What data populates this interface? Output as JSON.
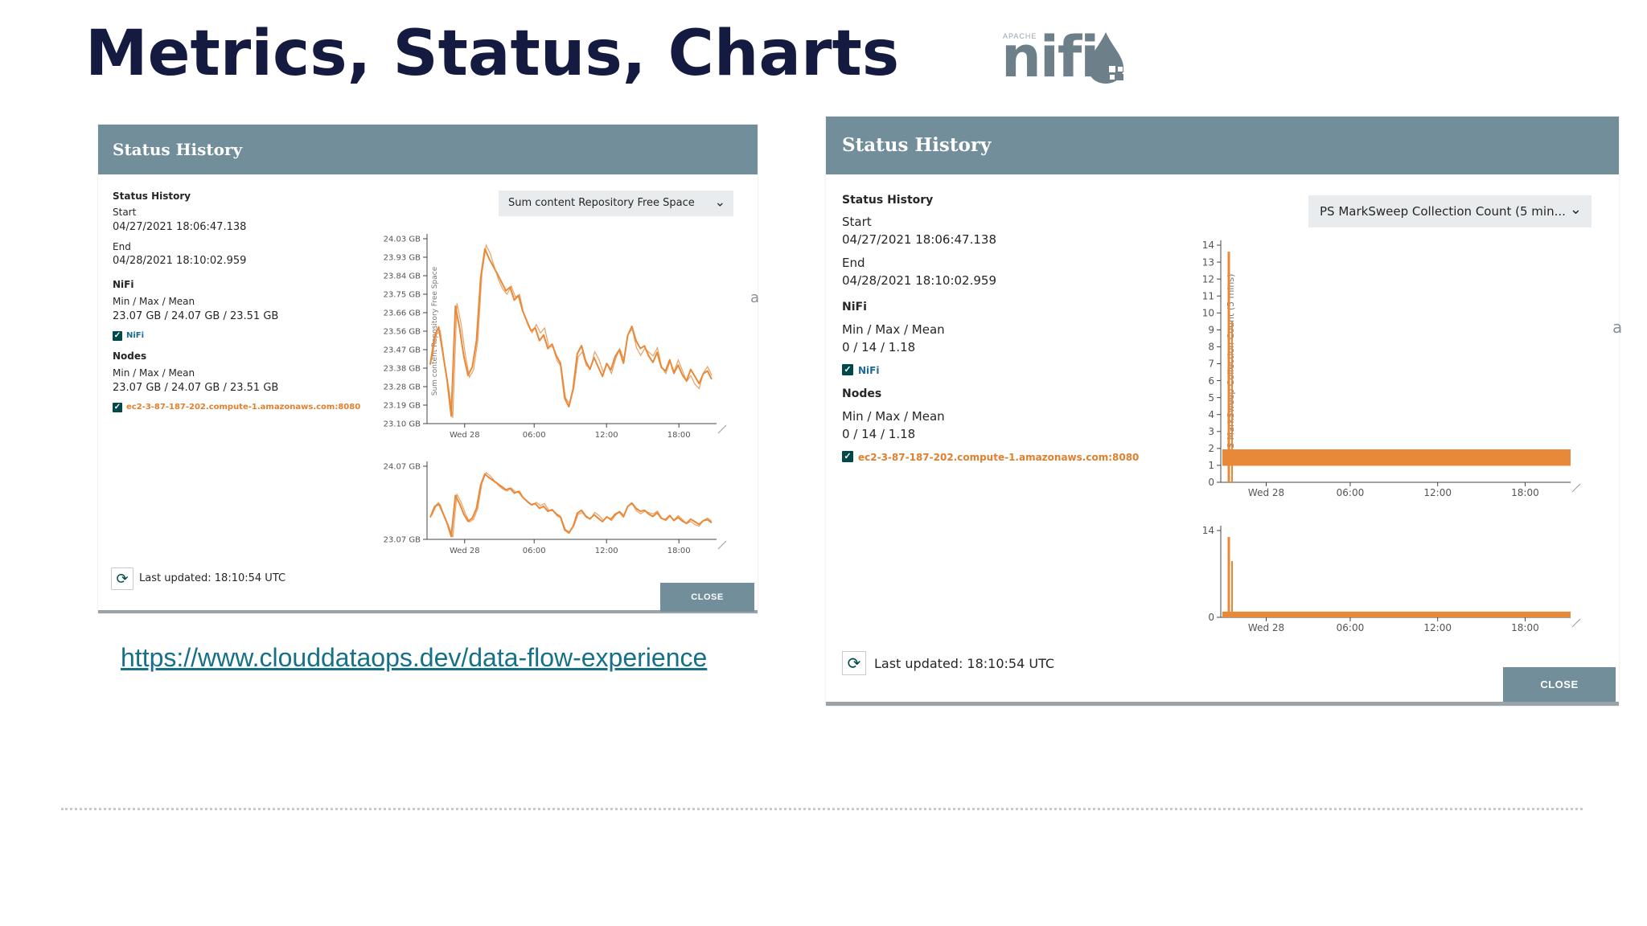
{
  "slide": {
    "title": "Metrics, Status, Charts",
    "logo_small": "APACHE",
    "logo_word": "nifi",
    "link": "https://www.clouddataops.dev/data-flow-experience"
  },
  "dialog_left": {
    "header": "Status History",
    "section": "Status History",
    "start_label": "Start",
    "start_value": "04/27/2021 18:06:47.138",
    "end_label": "End",
    "end_value": "04/28/2021 18:10:02.959",
    "nifi_label": "NiFi",
    "nifi_stats_label": "Min / Max / Mean",
    "nifi_stats_value": "23.07 GB / 24.07 GB / 23.51 GB",
    "nifi_check_label": "NiFi",
    "nodes_label": "Nodes",
    "nodes_stats_label": "Min / Max / Mean",
    "nodes_stats_value": "23.07 GB / 24.07 GB / 23.51 GB",
    "node_check_label": "ec2-3-87-187-202.compute-1.amazonaws.com:8080",
    "select_value": "Sum content Repository Free Space",
    "last_updated": "Last updated: 18:10:54 UTC",
    "close_label": "CLOSE",
    "side_frag": "a"
  },
  "dialog_right": {
    "header": "Status History",
    "section": "Status History",
    "start_label": "Start",
    "start_value": "04/27/2021 18:06:47.138",
    "end_label": "End",
    "end_value": "04/28/2021 18:10:02.959",
    "nifi_label": "NiFi",
    "nifi_stats_label": "Min / Max / Mean",
    "nifi_stats_value": "0 / 14 / 1.18",
    "nifi_check_label": "NiFi",
    "nodes_label": "Nodes",
    "nodes_stats_label": "Min / Max / Mean",
    "nodes_stats_value": "0 / 14 / 1.18",
    "node_check_label": "ec2-3-87-187-202.compute-1.amazonaws.com:8080",
    "select_value": "PS MarkSweep Collection Count (5 min...",
    "last_updated": "Last updated: 18:10:54 UTC",
    "close_label": "CLOSE",
    "side_frag": "a"
  },
  "colors": {
    "header": "#728e9b",
    "line": "#e8893a",
    "title": "#141a40",
    "link": "#17708a",
    "checkbox": "#004849"
  },
  "chart_data": [
    {
      "type": "line",
      "name": "left-main",
      "ylabel": "Sum content Repository Free Space",
      "yticks": [
        "24.03 GB",
        "23.93 GB",
        "23.84 GB",
        "23.75 GB",
        "23.66 GB",
        "23.56 GB",
        "23.47 GB",
        "23.38 GB",
        "23.28 GB",
        "23.19 GB",
        "23.10 GB"
      ],
      "xticks": [
        "Wed 28",
        "06:00",
        "12:00",
        "18:00"
      ],
      "ylim": [
        23.07,
        24.07
      ],
      "y": [
        23.4,
        23.55,
        23.6,
        23.45,
        23.3,
        23.1,
        23.72,
        23.6,
        23.45,
        23.35,
        23.4,
        23.55,
        23.9,
        24.06,
        24.0,
        23.95,
        23.9,
        23.85,
        23.8,
        23.82,
        23.75,
        23.78,
        23.7,
        23.65,
        23.6,
        23.62,
        23.55,
        23.58,
        23.5,
        23.52,
        23.45,
        23.4,
        23.2,
        23.15,
        23.25,
        23.45,
        23.5,
        23.42,
        23.38,
        23.45,
        23.4,
        23.35,
        23.42,
        23.38,
        23.45,
        23.48,
        23.4,
        23.55,
        23.6,
        23.52,
        23.48,
        23.5,
        23.45,
        23.42,
        23.48,
        23.4,
        23.38,
        23.44,
        23.36,
        23.4,
        23.34,
        23.3,
        23.36,
        23.32,
        23.28,
        23.34,
        23.36,
        23.32
      ]
    },
    {
      "type": "line",
      "name": "left-overview",
      "yticks": [
        "24.07 GB",
        "23.07 GB"
      ],
      "xticks": [
        "Wed 28",
        "06:00",
        "12:00",
        "18:00"
      ],
      "ylim": [
        23.07,
        24.07
      ],
      "y": [
        23.4,
        23.55,
        23.6,
        23.45,
        23.3,
        23.1,
        23.72,
        23.6,
        23.45,
        23.35,
        23.4,
        23.55,
        23.9,
        24.06,
        24.0,
        23.95,
        23.9,
        23.85,
        23.8,
        23.82,
        23.75,
        23.78,
        23.7,
        23.65,
        23.6,
        23.62,
        23.55,
        23.58,
        23.5,
        23.52,
        23.45,
        23.4,
        23.2,
        23.15,
        23.25,
        23.45,
        23.5,
        23.42,
        23.38,
        23.45,
        23.4,
        23.35,
        23.42,
        23.38,
        23.45,
        23.48,
        23.4,
        23.55,
        23.6,
        23.52,
        23.48,
        23.5,
        23.45,
        23.42,
        23.48,
        23.4,
        23.38,
        23.44,
        23.36,
        23.4,
        23.34,
        23.3,
        23.36,
        23.32,
        23.28,
        23.34,
        23.36,
        23.32
      ]
    },
    {
      "type": "area",
      "name": "right-main",
      "ylabel": "PS MarkSweep Collection Count (5 mins)",
      "yticks": [
        "14",
        "13",
        "12",
        "11",
        "10",
        "9",
        "8",
        "7",
        "6",
        "5",
        "4",
        "3",
        "2",
        "1",
        "0"
      ],
      "xticks": [
        "Wed 28",
        "06:00",
        "12:00",
        "18:00"
      ],
      "ylim": [
        0,
        14
      ],
      "band": [
        1,
        2
      ],
      "spike": 14
    },
    {
      "type": "area",
      "name": "right-overview",
      "yticks": [
        "14",
        "0"
      ],
      "xticks": [
        "Wed 28",
        "06:00",
        "12:00",
        "18:00"
      ],
      "ylim": [
        0,
        14
      ],
      "band": [
        0,
        1
      ],
      "spike": 14
    }
  ]
}
